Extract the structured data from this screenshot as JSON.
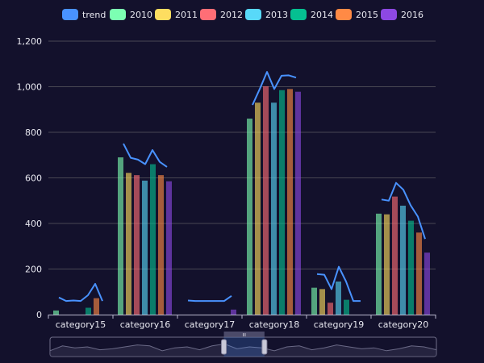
{
  "chart_data": {
    "type": "bar",
    "categories": [
      "category15",
      "category16",
      "category17",
      "category18",
      "category19",
      "category20"
    ],
    "series": [
      {
        "name": "2010",
        "color": "#7cffb2",
        "values": [
          18,
          690,
          0,
          860,
          118,
          443
        ]
      },
      {
        "name": "2011",
        "color": "#fddd60",
        "values": [
          0,
          622,
          0,
          930,
          112,
          440
        ]
      },
      {
        "name": "2012",
        "color": "#ff6e76",
        "values": [
          0,
          612,
          0,
          1002,
          52,
          518
        ]
      },
      {
        "name": "2013",
        "color": "#58d9f9",
        "values": [
          0,
          588,
          0,
          930,
          145,
          478
        ]
      },
      {
        "name": "2014",
        "color": "#05c091",
        "values": [
          30,
          660,
          0,
          985,
          65,
          412
        ]
      },
      {
        "name": "2015",
        "color": "#ff8a45",
        "values": [
          72,
          612,
          0,
          990,
          0,
          360
        ]
      },
      {
        "name": "2016",
        "color": "#8d48e3",
        "values": [
          0,
          585,
          22,
          978,
          0,
          272
        ]
      }
    ],
    "trend": {
      "name": "trend",
      "color": "#4992ff",
      "values": [
        [
          75,
          60,
          62,
          60,
          85,
          135,
          60
        ],
        [
          750,
          688,
          680,
          660,
          722,
          670,
          648
        ],
        [
          62,
          60,
          60,
          60,
          60,
          60,
          82
        ],
        [
          920,
          990,
          1065,
          990,
          1048,
          1050,
          1040
        ],
        [
          178,
          175,
          112,
          210,
          145,
          60,
          60
        ],
        [
          505,
          500,
          578,
          548,
          480,
          430,
          332
        ]
      ]
    },
    "ylim": [
      0,
      1200
    ],
    "yticks": [
      "0",
      "200",
      "400",
      "600",
      "800",
      "1,000",
      "1,200"
    ],
    "ytick_values": [
      0,
      200,
      400,
      600,
      800,
      1000,
      1200
    ],
    "legend_position": "top-center",
    "grid": true,
    "datazoom": {
      "start": 0.45,
      "end": 0.555,
      "handle_label": "III",
      "overview": [
        0.3,
        0.55,
        0.45,
        0.5,
        0.35,
        0.4,
        0.5,
        0.6,
        0.55,
        0.3,
        0.45,
        0.5,
        0.35,
        0.55,
        0.65,
        0.4,
        0.5,
        0.45,
        0.3,
        0.5,
        0.55,
        0.35,
        0.45,
        0.6,
        0.5,
        0.4,
        0.45,
        0.3,
        0.4,
        0.55,
        0.5,
        0.35
      ]
    }
  }
}
